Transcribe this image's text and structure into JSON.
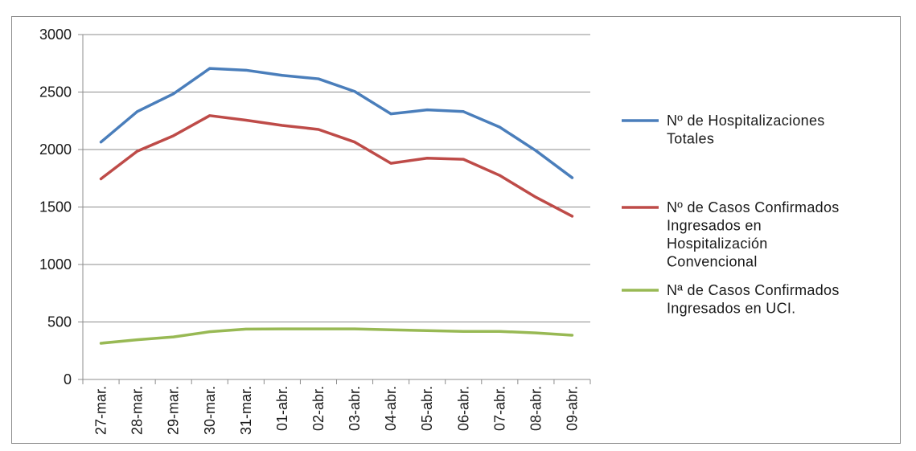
{
  "chart_data": {
    "type": "line",
    "title": "",
    "xlabel": "",
    "ylabel": "",
    "categories": [
      "27-mar.",
      "28-mar.",
      "29-mar.",
      "30-mar.",
      "31-mar.",
      "01-abr.",
      "02-abr.",
      "03-abr.",
      "04-abr.",
      "05-abr.",
      "06-abr.",
      "07-abr.",
      "08-abr.",
      "09-abr."
    ],
    "ylim": [
      0,
      3000
    ],
    "yticks": [
      "0",
      "500",
      "1000",
      "1500",
      "2000",
      "2500",
      "3000"
    ],
    "grid": true,
    "legend_position": "right",
    "series": [
      {
        "name": "Nº de Hospitalizaciones Totales",
        "legend_lines": [
          "Nº de Hospitalizaciones",
          "Totales"
        ],
        "color": "#4a7ebb",
        "values": [
          2065,
          2330,
          2485,
          2705,
          2690,
          2645,
          2615,
          2505,
          2310,
          2345,
          2330,
          2195,
          1990,
          1755
        ]
      },
      {
        "name": "Nº de Casos Confirmados Ingresados en Hospitalización Convencional",
        "legend_lines": [
          "Nº de Casos Confirmados",
          "Ingresados en",
          "Hospitalización",
          "Convencional"
        ],
        "color": "#be4b48",
        "values": [
          1745,
          1985,
          2120,
          2295,
          2255,
          2210,
          2175,
          2065,
          1880,
          1925,
          1915,
          1775,
          1585,
          1420
        ]
      },
      {
        "name": "Nª de Casos Confirmados Ingresados en UCI.",
        "legend_lines": [
          "Nª de Casos Confirmados",
          "Ingresados en UCI."
        ],
        "color": "#98b954",
        "values": [
          315,
          345,
          370,
          415,
          438,
          440,
          440,
          440,
          432,
          425,
          418,
          418,
          405,
          385
        ]
      }
    ]
  }
}
